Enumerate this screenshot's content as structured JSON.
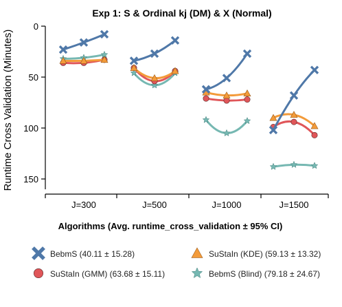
{
  "chart_data": {
    "type": "line",
    "title": "Exp 1: S & Ordinal kj (DM) & X (Normal)",
    "xlabel": "",
    "ylabel": "Runtime Cross Validation (Minutes)",
    "ylim": [
      0,
      160
    ],
    "y_inverted": true,
    "yticks": [
      "0",
      "50",
      "100",
      "150"
    ],
    "categories": [
      "J=300",
      "J=500",
      "J=1000",
      "J=1500"
    ],
    "legend_title": "Algorithms (Avg. runtime_cross_validation ± 95% CI)",
    "series": [
      {
        "name": "BebmS (40.11 ± 15.28)",
        "marker": "x",
        "color": "#4f78a8",
        "values": [
          [
            23,
            16,
            8
          ],
          [
            34,
            27,
            14
          ],
          [
            62,
            51,
            27
          ],
          [
            102,
            68,
            43
          ]
        ]
      },
      {
        "name": "SuStaIn (KDE) (59.13 ± 13.32)",
        "marker": "triangle",
        "color": "#f39b3a",
        "values": [
          [
            34,
            34,
            33
          ],
          [
            41,
            51,
            44
          ],
          [
            65,
            68,
            66
          ],
          [
            90,
            87,
            98
          ]
        ]
      },
      {
        "name": "SuStaIn (GMM) (63.68 ± 15.11)",
        "marker": "circle",
        "color": "#e05659",
        "values": [
          [
            36,
            36,
            33
          ],
          [
            41,
            54,
            44
          ],
          [
            71,
            73,
            72
          ],
          [
            99,
            94,
            107
          ]
        ]
      },
      {
        "name": "BebmS (Blind) (79.18 ± 24.67)",
        "marker": "star",
        "color": "#76b8b2",
        "values": [
          [
            32,
            31,
            28
          ],
          [
            46,
            58,
            46
          ],
          [
            92,
            105,
            93
          ],
          [
            138,
            136,
            137
          ]
        ]
      }
    ]
  }
}
